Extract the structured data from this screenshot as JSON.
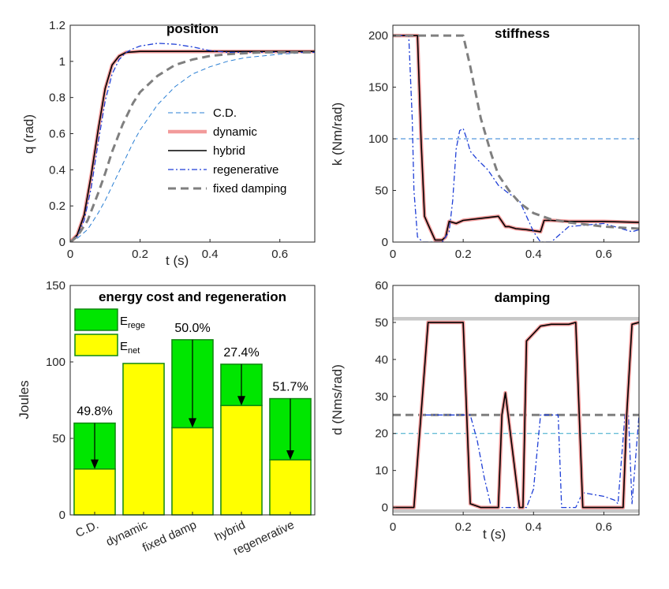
{
  "chart_data": [
    {
      "type": "line",
      "title": "position",
      "xlabel": "t (s)",
      "ylabel": "q (rad)",
      "xlim": [
        0,
        0.7
      ],
      "ylim": [
        0,
        1.2
      ],
      "xticks": [
        "0",
        "0.2",
        "0.4",
        "0.6"
      ],
      "yticks": [
        "0",
        "0.2",
        "0.4",
        "0.6",
        "0.8",
        "1",
        "1.2"
      ],
      "legend_position": "bottom-right",
      "grid": false,
      "series": [
        {
          "name": "C.D.",
          "color": "#2a7fd4",
          "style": "dash-thin",
          "x": [
            0,
            0.02,
            0.05,
            0.08,
            0.1,
            0.12,
            0.15,
            0.18,
            0.2,
            0.25,
            0.3,
            0.35,
            0.4,
            0.45,
            0.5,
            0.55,
            0.6,
            0.65,
            0.7
          ],
          "y": [
            0,
            0.02,
            0.07,
            0.16,
            0.23,
            0.31,
            0.43,
            0.55,
            0.62,
            0.76,
            0.86,
            0.93,
            0.97,
            1.0,
            1.02,
            1.03,
            1.04,
            1.045,
            1.05
          ]
        },
        {
          "name": "dynamic",
          "color": "#f29b9b",
          "style": "solid-thick",
          "x": [
            0,
            0.02,
            0.04,
            0.06,
            0.08,
            0.1,
            0.12,
            0.14,
            0.16,
            0.2,
            0.3,
            0.4,
            0.5,
            0.6,
            0.7
          ],
          "y": [
            0,
            0.04,
            0.15,
            0.37,
            0.62,
            0.85,
            0.98,
            1.03,
            1.05,
            1.055,
            1.055,
            1.055,
            1.055,
            1.055,
            1.055
          ]
        },
        {
          "name": "hybrid",
          "color": "#000000",
          "style": "solid",
          "x": [
            0,
            0.02,
            0.04,
            0.06,
            0.08,
            0.1,
            0.12,
            0.14,
            0.16,
            0.2,
            0.3,
            0.4,
            0.5,
            0.6,
            0.7
          ],
          "y": [
            0,
            0.04,
            0.15,
            0.37,
            0.62,
            0.85,
            0.98,
            1.03,
            1.05,
            1.055,
            1.055,
            1.055,
            1.055,
            1.055,
            1.055
          ]
        },
        {
          "name": "regenerative",
          "color": "#1f3fd6",
          "style": "dashdot",
          "x": [
            0,
            0.02,
            0.04,
            0.06,
            0.08,
            0.1,
            0.12,
            0.14,
            0.16,
            0.18,
            0.2,
            0.25,
            0.3,
            0.35,
            0.4,
            0.45,
            0.5,
            0.55,
            0.6,
            0.7
          ],
          "y": [
            0,
            0.03,
            0.12,
            0.3,
            0.55,
            0.78,
            0.93,
            1.01,
            1.05,
            1.07,
            1.085,
            1.1,
            1.095,
            1.08,
            1.06,
            1.05,
            1.05,
            1.05,
            1.05,
            1.05
          ]
        },
        {
          "name": "fixed damping",
          "color": "#7f7f7f",
          "style": "dash-thick",
          "x": [
            0,
            0.02,
            0.05,
            0.08,
            0.1,
            0.12,
            0.15,
            0.18,
            0.2,
            0.25,
            0.3,
            0.35,
            0.4,
            0.45,
            0.5,
            0.55,
            0.6,
            0.7
          ],
          "y": [
            0,
            0.03,
            0.12,
            0.27,
            0.38,
            0.5,
            0.65,
            0.77,
            0.83,
            0.92,
            0.98,
            1.01,
            1.03,
            1.04,
            1.045,
            1.05,
            1.05,
            1.05
          ]
        }
      ]
    },
    {
      "type": "line",
      "title": "stiffness",
      "xlabel": "",
      "ylabel": "k (Nm/rad)",
      "xlim": [
        0,
        0.7
      ],
      "ylim": [
        0,
        210
      ],
      "xticks": [
        "0",
        "0.2",
        "0.4",
        "0.6"
      ],
      "yticks": [
        "0",
        "50",
        "100",
        "150",
        "200"
      ],
      "grid": false,
      "series": [
        {
          "name": "C.D.",
          "color": "#2a7fd4",
          "style": "dash-thin",
          "x": [
            0,
            0.7
          ],
          "y": [
            100,
            100
          ]
        },
        {
          "name": "dynamic",
          "color": "#f29b9b",
          "style": "solid-thick",
          "x": [
            0,
            0.07,
            0.08,
            0.09,
            0.1,
            0.12,
            0.14,
            0.15,
            0.16,
            0.18,
            0.2,
            0.25,
            0.3,
            0.31,
            0.32,
            0.33,
            0.35,
            0.38,
            0.4,
            0.42,
            0.43,
            0.45,
            0.5,
            0.6,
            0.7
          ],
          "y": [
            200,
            200,
            100,
            25,
            17,
            2,
            2,
            5,
            20,
            18,
            21,
            23,
            25,
            20,
            15,
            15,
            13,
            12,
            11,
            10,
            21,
            21,
            20,
            20,
            19
          ]
        },
        {
          "name": "hybrid",
          "color": "#000000",
          "style": "solid",
          "x": [
            0,
            0.07,
            0.08,
            0.09,
            0.1,
            0.12,
            0.14,
            0.15,
            0.16,
            0.18,
            0.2,
            0.25,
            0.3,
            0.31,
            0.32,
            0.33,
            0.35,
            0.38,
            0.4,
            0.42,
            0.43,
            0.45,
            0.5,
            0.6,
            0.7
          ],
          "y": [
            200,
            200,
            100,
            25,
            17,
            2,
            2,
            5,
            20,
            18,
            21,
            23,
            25,
            20,
            15,
            15,
            13,
            12,
            11,
            10,
            21,
            21,
            20,
            20,
            19
          ]
        },
        {
          "name": "regenerative",
          "color": "#1f3fd6",
          "style": "dashdot",
          "x": [
            0,
            0.045,
            0.055,
            0.06,
            0.07,
            0.085,
            0.1,
            0.12,
            0.14,
            0.16,
            0.17,
            0.18,
            0.19,
            0.2,
            0.21,
            0.22,
            0.24,
            0.27,
            0.3,
            0.33,
            0.36,
            0.38,
            0.4,
            0.42,
            0.45,
            0.5,
            0.6,
            0.65,
            0.68,
            0.7
          ],
          "y": [
            200,
            200,
            120,
            50,
            5,
            0,
            0,
            0,
            0,
            10,
            40,
            90,
            108,
            110,
            100,
            88,
            80,
            70,
            55,
            47,
            40,
            25,
            10,
            0,
            0,
            15,
            18,
            13,
            10,
            12
          ]
        },
        {
          "name": "fixed damping",
          "color": "#7f7f7f",
          "style": "dash-thick",
          "x": [
            0,
            0.2,
            0.22,
            0.25,
            0.28,
            0.3,
            0.33,
            0.36,
            0.4,
            0.45,
            0.5,
            0.55,
            0.6,
            0.65,
            0.7
          ],
          "y": [
            200,
            200,
            170,
            120,
            85,
            65,
            50,
            38,
            28,
            22,
            19,
            17,
            15,
            14,
            13
          ]
        }
      ]
    },
    {
      "type": "bar",
      "title": "energy cost and regeneration",
      "ylabel": "Joules",
      "ylim": [
        0,
        150
      ],
      "yticks": [
        "0",
        "50",
        "100",
        "150"
      ],
      "categories": [
        "C.D.",
        "dynamic",
        "fixed damp",
        "hybrid",
        "regenerative"
      ],
      "series": [
        {
          "name": "E_net",
          "legend_main": "E",
          "legend_sub": "net",
          "color": "#ffff00",
          "values": [
            30,
            99,
            57,
            71.5,
            36
          ]
        },
        {
          "name": "E_rege",
          "legend_main": "E",
          "legend_sub": "rege",
          "color": "#00e600",
          "values": [
            30,
            0,
            57.5,
            27,
            40
          ]
        }
      ],
      "annotations": [
        "49.8%",
        "",
        "50.0%",
        "27.4%",
        "51.7%"
      ]
    },
    {
      "type": "line",
      "title": "damping",
      "xlabel": "t (s)",
      "ylabel": "d (Nms/rad)",
      "xlim": [
        0,
        0.7
      ],
      "ylim": [
        -2,
        60
      ],
      "xticks": [
        "0",
        "0.2",
        "0.4",
        "0.6"
      ],
      "yticks": [
        "0",
        "10",
        "20",
        "30",
        "40",
        "50",
        "60"
      ],
      "grid": false,
      "series": [
        {
          "name": "upper limit",
          "color": "#c8c8c8",
          "style": "solid-thick",
          "x": [
            0,
            0.7
          ],
          "y": [
            51,
            51
          ]
        },
        {
          "name": "lower limit",
          "color": "#c8c8c8",
          "style": "solid-thick",
          "x": [
            0,
            0.7
          ],
          "y": [
            -1,
            -1
          ]
        },
        {
          "name": "C.D.",
          "color": "#34a7c8",
          "style": "dash-thin",
          "x": [
            0,
            0.7
          ],
          "y": [
            20,
            20
          ]
        },
        {
          "name": "fixed damping",
          "color": "#7f7f7f",
          "style": "dash-thick",
          "x": [
            0,
            0.7
          ],
          "y": [
            25,
            25
          ]
        },
        {
          "name": "regenerative",
          "color": "#1f3fd6",
          "style": "dashdot",
          "x": [
            0,
            0.06,
            0.08,
            0.1,
            0.2,
            0.22,
            0.24,
            0.26,
            0.28,
            0.3,
            0.36,
            0.38,
            0.4,
            0.42,
            0.47,
            0.48,
            0.52,
            0.54,
            0.6,
            0.63,
            0.64,
            0.66,
            0.67,
            0.68,
            0.7
          ],
          "y": [
            0,
            0,
            25,
            25,
            25,
            25,
            18,
            8,
            0,
            0,
            0,
            0,
            5,
            25,
            25,
            0,
            0,
            4,
            3,
            2,
            1,
            25,
            25,
            1,
            25
          ]
        },
        {
          "name": "dynamic",
          "color": "#f29b9b",
          "style": "solid-thick",
          "x": [
            0,
            0.06,
            0.1,
            0.2,
            0.21,
            0.22,
            0.25,
            0.3,
            0.31,
            0.32,
            0.36,
            0.37,
            0.38,
            0.4,
            0.42,
            0.45,
            0.5,
            0.52,
            0.54,
            0.655,
            0.665,
            0.68,
            0.7
          ],
          "y": [
            0,
            0,
            50,
            50,
            25,
            1,
            0,
            0,
            25,
            31,
            0,
            0,
            45,
            47,
            49,
            49.5,
            49.5,
            50,
            0,
            0,
            25,
            49.5,
            50
          ]
        },
        {
          "name": "hybrid",
          "color": "#000000",
          "style": "solid",
          "x": [
            0,
            0.06,
            0.1,
            0.2,
            0.21,
            0.22,
            0.25,
            0.3,
            0.31,
            0.32,
            0.36,
            0.37,
            0.38,
            0.4,
            0.42,
            0.45,
            0.5,
            0.52,
            0.54,
            0.655,
            0.665,
            0.68,
            0.7
          ],
          "y": [
            0,
            0,
            50,
            50,
            25,
            1,
            0,
            0,
            25,
            31,
            0,
            0,
            45,
            47,
            49,
            49.5,
            49.5,
            50,
            0,
            0,
            25,
            49.5,
            50
          ]
        }
      ]
    }
  ]
}
